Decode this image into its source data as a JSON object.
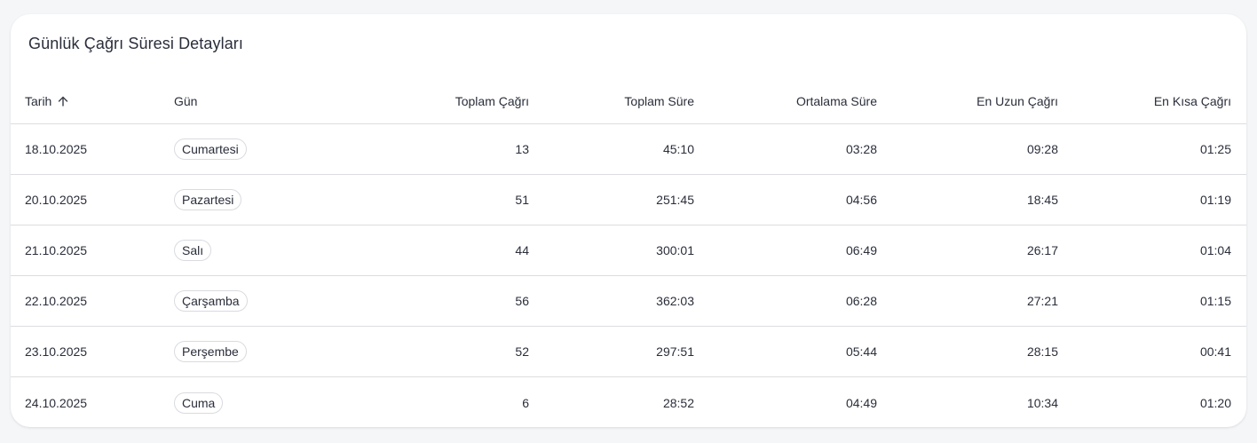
{
  "card": {
    "title": "Günlük Çağrı Süresi Detayları"
  },
  "table": {
    "headers": {
      "date": "Tarih",
      "day": "Gün",
      "total_calls": "Toplam Çağrı",
      "total_duration": "Toplam Süre",
      "avg_duration": "Ortalama Süre",
      "longest_call": "En Uzun Çağrı",
      "shortest_call": "En Kısa Çağrı"
    },
    "sort_icon": "arrow-up-icon",
    "rows": [
      {
        "date": "18.10.2025",
        "day": "Cumartesi",
        "total_calls": "13",
        "total_duration": "45:10",
        "avg_duration": "03:28",
        "longest_call": "09:28",
        "shortest_call": "01:25"
      },
      {
        "date": "20.10.2025",
        "day": "Pazartesi",
        "total_calls": "51",
        "total_duration": "251:45",
        "avg_duration": "04:56",
        "longest_call": "18:45",
        "shortest_call": "01:19"
      },
      {
        "date": "21.10.2025",
        "day": "Salı",
        "total_calls": "44",
        "total_duration": "300:01",
        "avg_duration": "06:49",
        "longest_call": "26:17",
        "shortest_call": "01:04"
      },
      {
        "date": "22.10.2025",
        "day": "Çarşamba",
        "total_calls": "56",
        "total_duration": "362:03",
        "avg_duration": "06:28",
        "longest_call": "27:21",
        "shortest_call": "01:15"
      },
      {
        "date": "23.10.2025",
        "day": "Perşembe",
        "total_calls": "52",
        "total_duration": "297:51",
        "avg_duration": "05:44",
        "longest_call": "28:15",
        "shortest_call": "00:41"
      },
      {
        "date": "24.10.2025",
        "day": "Cuma",
        "total_calls": "6",
        "total_duration": "28:52",
        "avg_duration": "04:49",
        "longest_call": "10:34",
        "shortest_call": "01:20"
      }
    ]
  }
}
